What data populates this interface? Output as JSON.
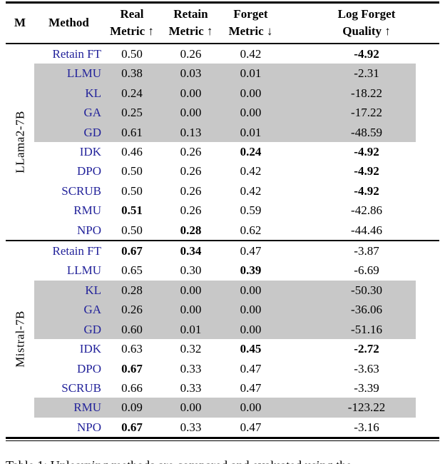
{
  "table": {
    "headers": {
      "m": "M",
      "method": "Method",
      "cols": [
        {
          "line1": "Real",
          "line2": "Metric",
          "arrow": "↑"
        },
        {
          "line1": "Retain",
          "line2": "Metric",
          "arrow": "↑"
        },
        {
          "line1": "Forget",
          "line2": "Metric",
          "arrow": "↓"
        },
        {
          "line1": "Log Forget",
          "line2": "Quality",
          "arrow": "↑"
        }
      ]
    },
    "sections": [
      {
        "model": "LLama2-7B",
        "rows": [
          {
            "method": "Retain FT",
            "values": [
              "0.50",
              "0.26",
              "0.42",
              "-4.92"
            ],
            "bold": [
              3
            ],
            "gray": false
          },
          {
            "method": "LLMU",
            "values": [
              "0.38",
              "0.03",
              "0.01",
              "-2.31"
            ],
            "bold": [],
            "gray": true
          },
          {
            "method": "KL",
            "values": [
              "0.24",
              "0.00",
              "0.00",
              "-18.22"
            ],
            "bold": [],
            "gray": true
          },
          {
            "method": "GA",
            "values": [
              "0.25",
              "0.00",
              "0.00",
              "-17.22"
            ],
            "bold": [],
            "gray": true
          },
          {
            "method": "GD",
            "values": [
              "0.61",
              "0.13",
              "0.01",
              "-48.59"
            ],
            "bold": [],
            "gray": true
          },
          {
            "method": "IDK",
            "values": [
              "0.46",
              "0.26",
              "0.24",
              "-4.92"
            ],
            "bold": [
              2,
              3
            ],
            "gray": false
          },
          {
            "method": "DPO",
            "values": [
              "0.50",
              "0.26",
              "0.42",
              "-4.92"
            ],
            "bold": [
              3
            ],
            "gray": false
          },
          {
            "method": "SCRUB",
            "values": [
              "0.50",
              "0.26",
              "0.42",
              "-4.92"
            ],
            "bold": [
              3
            ],
            "gray": false
          },
          {
            "method": "RMU",
            "values": [
              "0.51",
              "0.26",
              "0.59",
              "-42.86"
            ],
            "bold": [
              0
            ],
            "gray": false
          },
          {
            "method": "NPO",
            "values": [
              "0.50",
              "0.28",
              "0.62",
              "-44.46"
            ],
            "bold": [
              1
            ],
            "gray": false
          }
        ]
      },
      {
        "model": "Mistral-7B",
        "rows": [
          {
            "method": "Retain FT",
            "values": [
              "0.67",
              "0.34",
              "0.47",
              "-3.87"
            ],
            "bold": [
              0,
              1
            ],
            "gray": false
          },
          {
            "method": "LLMU",
            "values": [
              "0.65",
              "0.30",
              "0.39",
              "-6.69"
            ],
            "bold": [
              2
            ],
            "gray": false
          },
          {
            "method": "KL",
            "values": [
              "0.28",
              "0.00",
              "0.00",
              "-50.30"
            ],
            "bold": [],
            "gray": true
          },
          {
            "method": "GA",
            "values": [
              "0.26",
              "0.00",
              "0.00",
              "-36.06"
            ],
            "bold": [],
            "gray": true
          },
          {
            "method": "GD",
            "values": [
              "0.60",
              "0.01",
              "0.00",
              "-51.16"
            ],
            "bold": [],
            "gray": true
          },
          {
            "method": "IDK",
            "values": [
              "0.63",
              "0.32",
              "0.45",
              "-2.72"
            ],
            "bold": [
              2,
              3
            ],
            "gray": false
          },
          {
            "method": "DPO",
            "values": [
              "0.67",
              "0.33",
              "0.47",
              "-3.63"
            ],
            "bold": [
              0
            ],
            "gray": false
          },
          {
            "method": "SCRUB",
            "values": [
              "0.66",
              "0.33",
              "0.47",
              "-3.39"
            ],
            "bold": [],
            "gray": false
          },
          {
            "method": "RMU",
            "values": [
              "0.09",
              "0.00",
              "0.00",
              "-123.22"
            ],
            "bold": [],
            "gray": true
          },
          {
            "method": "NPO",
            "values": [
              "0.67",
              "0.33",
              "0.47",
              "-3.16"
            ],
            "bold": [
              0
            ],
            "gray": false
          }
        ]
      }
    ]
  },
  "caption": "Table 1: Unlearning methods are compared and evaluated using the",
  "colors": {
    "method_text": "#22229a",
    "row_highlight": "#c8c8c8"
  }
}
